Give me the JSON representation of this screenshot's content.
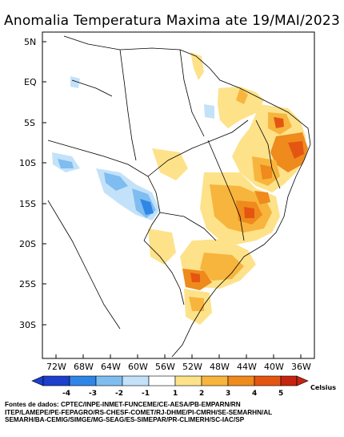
{
  "title": "Anomalia Temperatura Maxima ate 19/MAI/2023",
  "latitude_labels": [
    "5N",
    "EQ",
    "5S",
    "10S",
    "15S",
    "20S",
    "25S",
    "30S"
  ],
  "longitude_labels": [
    "72W",
    "68W",
    "64W",
    "60W",
    "56W",
    "52W",
    "48W",
    "44W",
    "40W",
    "36W"
  ],
  "legend": {
    "ticks": [
      "-4",
      "-3",
      "-2",
      "-1",
      "1",
      "2",
      "3",
      "4",
      "5"
    ],
    "unit": "Celsius",
    "colors": [
      "#1c3fcc",
      "#2f86e6",
      "#7fbdf0",
      "#c3e2fa",
      "#ffffff",
      "#fde28a",
      "#f7b53d",
      "#ef8a1c",
      "#e55512",
      "#c62410"
    ]
  },
  "sources": "Fontes de dados: CPTEC/INPE-INMET-FUNCEME/CE-AESA/PB-EMPARN/RN\nITEP/LAMEPE/PE-FEPAGRO/RS-CHESF-COMET/RJ-DHME/PI-CMRH/SE-SEMARHN/AL\nSEMARH/BA-CEMIG/SIMGE/MG-SEAG/ES-SIMEPAR/PR-CLIMERH/SC-IAC/SP"
}
